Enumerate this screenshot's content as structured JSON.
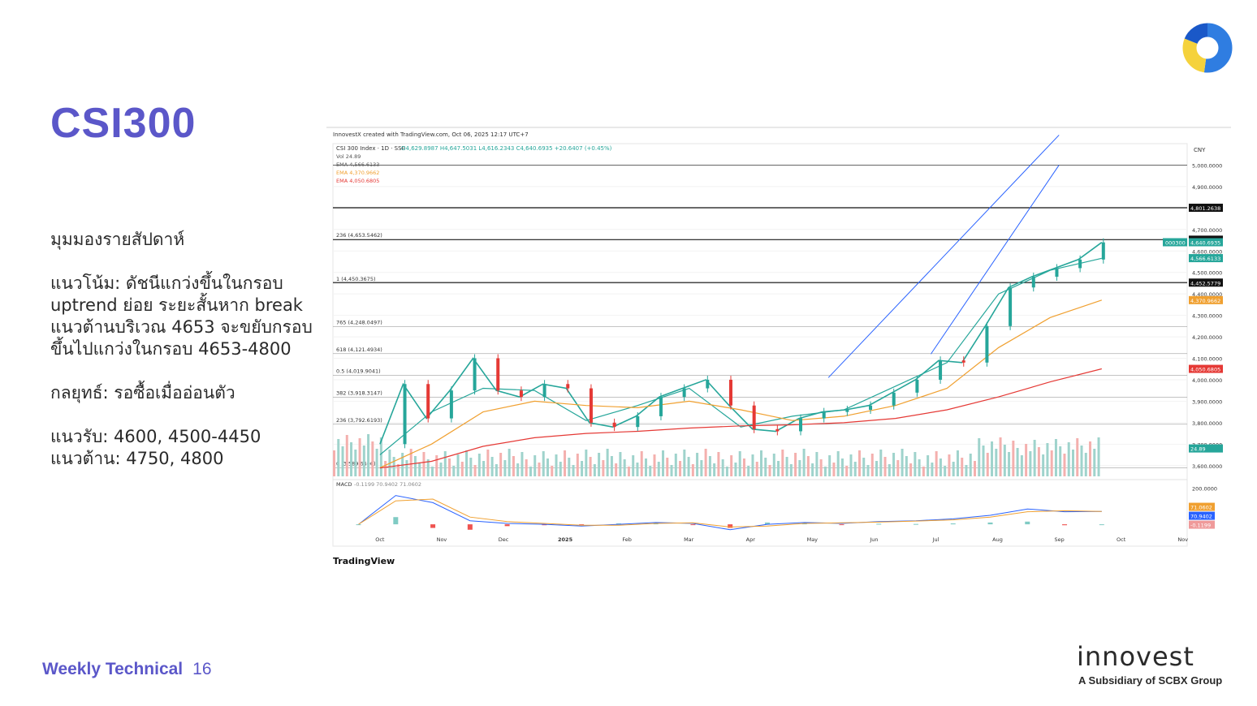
{
  "slide": {
    "title": "CSI300",
    "footer_label": "Weekly Technical",
    "page_number": "16",
    "brand_name": "innovest",
    "brand_tagline": "A Subsidiary of SCBX Group"
  },
  "commentary": {
    "heading": "มุมมองรายสัปดาห์",
    "trend": "แนวโน้ม: ดัชนีแกว่งขึ้นในกรอบ uptrend ย่อย ระยะสั้นหาก break แนวต้านบริเวณ 4653 จะขยับกรอบขึ้นไปแกว่งในกรอบ 4653-4800",
    "strategy": "กลยุทธ์: รอซื้อเมื่ออ่อนตัว",
    "support": "แนวรับ: 4600, 4500-4450",
    "resistance": "แนวต้าน: 4750, 4800"
  },
  "chart_data": {
    "type": "line",
    "credit": "InnovestX created with TradingView.com, Oct 06, 2025 12:17 UTC+7",
    "header": "CSI 300 Index · 1D · SSE",
    "ohlc_text": {
      "open": "O4,629.8987",
      "high": "H4,647.5031",
      "low": "L4,616.2343",
      "close": "C4,640.6935",
      "change": "+20.6407 (+0.45%)"
    },
    "indicator_labels": [
      "Vol 24.89",
      "EMA 4,566.6133",
      "EMA 4,370.9662",
      "EMA 4,050.6805"
    ],
    "currency": "CNY",
    "x_ticks": [
      "Oct",
      "Nov",
      "Dec",
      "2025",
      "Feb",
      "Mar",
      "Apr",
      "May",
      "Jun",
      "Jul",
      "Aug",
      "Sep",
      "Oct",
      "Nov"
    ],
    "y_ticks": [
      3600,
      3700,
      3800,
      3900,
      4000,
      4100,
      4200,
      4300,
      4400,
      4500,
      4600,
      4700,
      4900,
      5000
    ],
    "y_tick_labels": [
      "3,600.0000",
      "3,700.0000",
      "3,800.0000",
      "3,900.0000",
      "4,000.0000",
      "4,100.0000",
      "4,200.0000",
      "4,300.0000",
      "4,400.0000",
      "4,500.0000",
      "4,600.0000",
      "4,700.0000",
      "4,900.0000",
      "5,000.0000"
    ],
    "ylim": [
      3550,
      5100
    ],
    "fib_levels": [
      {
        "label": "0 (3,589.6606)",
        "value": 3589.66
      },
      {
        "label": "236 (3,792.6193)",
        "value": 3792.62
      },
      {
        "label": "382 (3,918.3147)",
        "value": 3918.31
      },
      {
        "label": "0.5 (4,019.9041)",
        "value": 4019.9
      },
      {
        "label": "618 (4,121.4934)",
        "value": 4121.49
      },
      {
        "label": "765 (4,248.0497)",
        "value": 4248.05
      },
      {
        "label": "1 (4,450.3675)",
        "value": 4450.37
      },
      {
        "label": "236 (4,653.5462)",
        "value": 4653.55
      }
    ],
    "horizontal_lines": [
      4801.2638,
      4652.4789,
      4452.5779,
      5000
    ],
    "price_badges": [
      {
        "label": "4,801.2638",
        "value": 4801.26,
        "color": "#111111"
      },
      {
        "label": "4,652.4789",
        "value": 4652.48,
        "color": "#111111"
      },
      {
        "label": "4,640.6935",
        "value": 4640.69,
        "color": "#26a69a"
      },
      {
        "label": "4,566.6133",
        "value": 4566.61,
        "color": "#26a69a"
      },
      {
        "label": "4,452.5779",
        "value": 4452.58,
        "color": "#111111"
      },
      {
        "label": "4,370.9662",
        "value": 4370.97,
        "color": "#f0a030"
      },
      {
        "label": "4,050.6805",
        "value": 4050.68,
        "color": "#e53935"
      },
      {
        "label": "24.89",
        "value": 3680,
        "color": "#26a69a"
      }
    ],
    "symbol_tag": "000300",
    "series": [
      {
        "name": "CSI 300 Index",
        "color": "#26a69a",
        "x": [
          "Sep-26",
          "Oct-8",
          "Oct-18",
          "Nov-1",
          "Nov-8",
          "Nov-20",
          "Dec-2",
          "Dec-12",
          "Dec-24",
          "Jan-3",
          "Jan-15",
          "Feb-5",
          "Feb-18",
          "Mar-3",
          "Mar-17",
          "Mar-28",
          "Apr-7",
          "Apr-18",
          "May-6",
          "May-20",
          "Jun-3",
          "Jun-18",
          "Jul-1",
          "Jul-15",
          "Jul-28",
          "Aug-8",
          "Aug-20",
          "Aug-28",
          "Sep-5",
          "Sep-15",
          "Sep-25",
          "Sep-30"
        ],
        "values": [
          3700,
          3980,
          3820,
          3950,
          4100,
          3950,
          3920,
          3980,
          3960,
          3800,
          3780,
          3830,
          3920,
          3960,
          4000,
          3880,
          3770,
          3760,
          3820,
          3850,
          3860,
          3880,
          3940,
          4000,
          4090,
          4080,
          4250,
          4430,
          4480,
          4520,
          4560,
          4640
        ]
      },
      {
        "name": "EMA 4,566.6133",
        "color": "#26a69a",
        "x": [
          "Sep-26",
          "Oct-8",
          "Nov-8",
          "Dec-12",
          "Jan-15",
          "Feb-18",
          "Mar-17",
          "Apr-18",
          "May-20",
          "Jun-18",
          "Jul-15",
          "Aug-8",
          "Aug-28",
          "Sep-15",
          "Sep-30"
        ],
        "values": [
          3650,
          3850,
          3960,
          3950,
          3810,
          3880,
          3960,
          3780,
          3830,
          3860,
          3970,
          4080,
          4400,
          4510,
          4566
        ]
      },
      {
        "name": "EMA 4,370.9662",
        "color": "#f0a030",
        "x": [
          "Sep-26",
          "Oct-8",
          "Nov-8",
          "Dec-12",
          "Jan-15",
          "Feb-18",
          "Mar-17",
          "Apr-18",
          "May-20",
          "Jun-18",
          "Jul-15",
          "Aug-8",
          "Aug-28",
          "Sep-15",
          "Sep-30"
        ],
        "values": [
          3590,
          3700,
          3850,
          3900,
          3880,
          3870,
          3900,
          3860,
          3810,
          3830,
          3880,
          3960,
          4150,
          4290,
          4371
        ]
      },
      {
        "name": "EMA 4,050.6805",
        "color": "#e53935",
        "x": [
          "Sep-26",
          "Oct-8",
          "Nov-8",
          "Dec-12",
          "Jan-15",
          "Feb-18",
          "Mar-17",
          "Apr-18",
          "May-20",
          "Jun-18",
          "Jul-15",
          "Aug-8",
          "Aug-28",
          "Sep-15",
          "Sep-30"
        ],
        "values": [
          3589,
          3620,
          3690,
          3730,
          3750,
          3760,
          3775,
          3785,
          3790,
          3800,
          3820,
          3860,
          3920,
          3990,
          4051
        ]
      }
    ],
    "channel": {
      "upper": [
        [
          0.58,
          4010
        ],
        [
          0.85,
          5140
        ]
      ],
      "lower": [
        [
          0.7,
          4120
        ],
        [
          0.85,
          5000
        ]
      ]
    },
    "macd": {
      "label": "MACD",
      "values_text": [
        "-0.1199",
        "70.9402",
        "71.0602"
      ],
      "ylim": [
        -40,
        230
      ],
      "tick_label": "200.0000",
      "macd_line": [
        0,
        160,
        120,
        20,
        5,
        0,
        -10,
        0,
        10,
        5,
        -30,
        0,
        10,
        5,
        15,
        20,
        30,
        50,
        85,
        70,
        71
      ],
      "signal_line": [
        0,
        130,
        140,
        40,
        15,
        5,
        -5,
        -5,
        5,
        8,
        -15,
        -10,
        5,
        8,
        12,
        18,
        25,
        40,
        70,
        75,
        71
      ],
      "histogram": [
        0,
        40,
        -20,
        -30,
        -10,
        -5,
        -5,
        5,
        5,
        -3,
        -20,
        10,
        5,
        -3,
        3,
        2,
        5,
        10,
        15,
        -5,
        0
      ],
      "badges": [
        {
          "label": "71.0602",
          "color": "#f0a030"
        },
        {
          "label": "70.9402",
          "color": "#2962ff"
        },
        {
          "label": "-0.1199",
          "color": "#ef9a9a"
        }
      ]
    },
    "volume_badge": "24.89",
    "tradingview_brand": "TradingView"
  }
}
